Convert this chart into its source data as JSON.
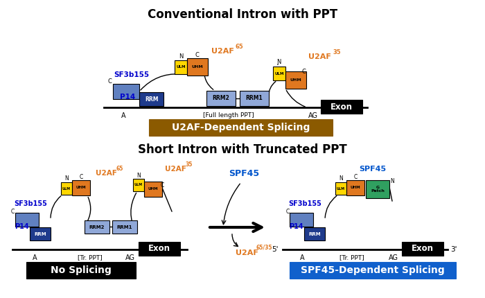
{
  "title1": "Conventional Intron with PPT",
  "title2": "Short Intron with Truncated PPT",
  "label_u2af_dep": "U2AF-Dependent Splicing",
  "label_no_splice": "No Splicing",
  "label_spf45_dep": "SPF45-Dependent Splicing",
  "color_yellow": "#FFD700",
  "color_orange": "#E07820",
  "color_blue_dark": "#1F3B8C",
  "color_blue_med": "#6080C0",
  "color_blue_light": "#90A8D8",
  "color_green": "#30A060",
  "color_brown": "#8B5A00",
  "color_black": "#000000",
  "color_white": "#FFFFFF",
  "color_blue_label": "#0000CC",
  "color_spf45_label": "#0055CC",
  "bg_color": "#FFFFFF"
}
